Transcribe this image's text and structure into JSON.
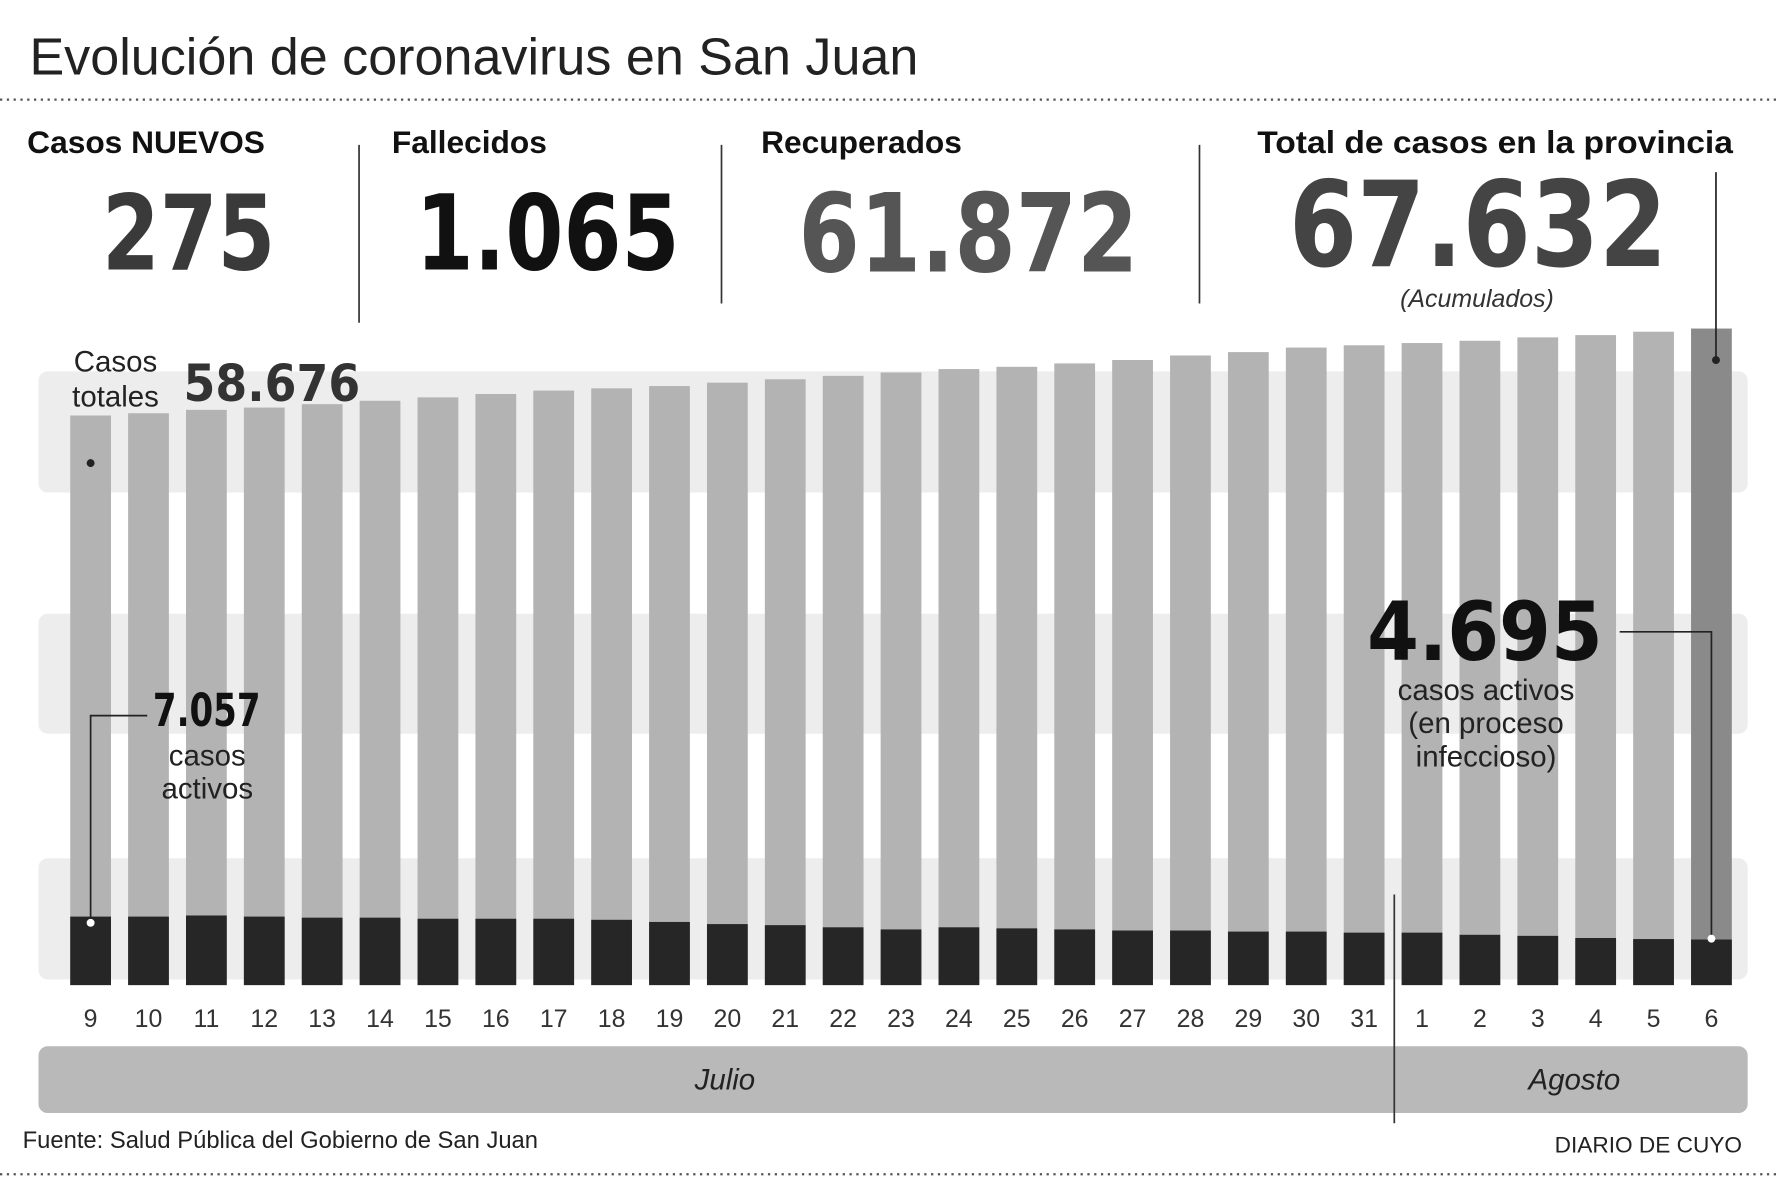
{
  "title": "Evolución de coronavirus en San Juan",
  "stats": [
    {
      "label": "Casos NUEVOS",
      "value": "275"
    },
    {
      "label": "Fallecidos",
      "value": "1.065"
    },
    {
      "label": "Recuperados",
      "value": "61.872"
    },
    {
      "label": "Total de casos en la provincia",
      "value": "67.632",
      "note": "(Acumulados)"
    }
  ],
  "chart_data": {
    "type": "bar",
    "categories": [
      "9",
      "10",
      "11",
      "12",
      "13",
      "14",
      "15",
      "16",
      "17",
      "18",
      "19",
      "20",
      "21",
      "22",
      "23",
      "24",
      "25",
      "26",
      "27",
      "28",
      "29",
      "30",
      "31",
      "1",
      "2",
      "3",
      "4",
      "5",
      "6"
    ],
    "months": [
      "Julio",
      "Agosto"
    ],
    "series": [
      {
        "color": "#b3b3b3",
        "highlight_color": "#8a8a8a",
        "values": [
          58676,
          58908,
          59258,
          59492,
          59842,
          60191,
          60541,
          60891,
          61241,
          61474,
          61707,
          62057,
          62407,
          62757,
          63107,
          63457,
          63690,
          64040,
          64390,
          64857,
          65207,
          65673,
          65907,
          66140,
          66373,
          66723,
          66957,
          67307,
          67632
        ],
        "value_labels": [
          "58.676",
          null,
          null,
          null,
          null,
          null,
          null,
          null,
          null,
          null,
          null,
          null,
          null,
          null,
          null,
          null,
          null,
          null,
          null,
          null,
          null,
          null,
          null,
          null,
          null,
          null,
          null,
          null,
          null
        ]
      },
      {
        "color": "#262626",
        "values": [
          7057,
          7057,
          7170,
          7057,
          6947,
          6947,
          6837,
          6837,
          6837,
          6727,
          6506,
          6286,
          6176,
          5955,
          5735,
          5955,
          5845,
          5735,
          5624,
          5624,
          5514,
          5514,
          5404,
          5404,
          5183,
          5073,
          4853,
          4743,
          4695
        ],
        "value_labels": [
          "7.057",
          null,
          null,
          null,
          null,
          null,
          null,
          null,
          null,
          null,
          null,
          null,
          null,
          null,
          null,
          null,
          null,
          null,
          null,
          null,
          null,
          null,
          null,
          null,
          null,
          null,
          null,
          null,
          "4.695"
        ]
      }
    ],
    "ylim": [
      0,
      68000
    ],
    "annotations": {
      "totals": [
        "Casos",
        "totales"
      ],
      "active_first": [
        "casos",
        "activos"
      ],
      "active_last": [
        "casos activos",
        "(en proceso",
        "infeccioso)"
      ]
    }
  },
  "source": "Fuente: Salud Pública del Gobierno de San Juan",
  "credit": "DIARIO DE CUYO"
}
